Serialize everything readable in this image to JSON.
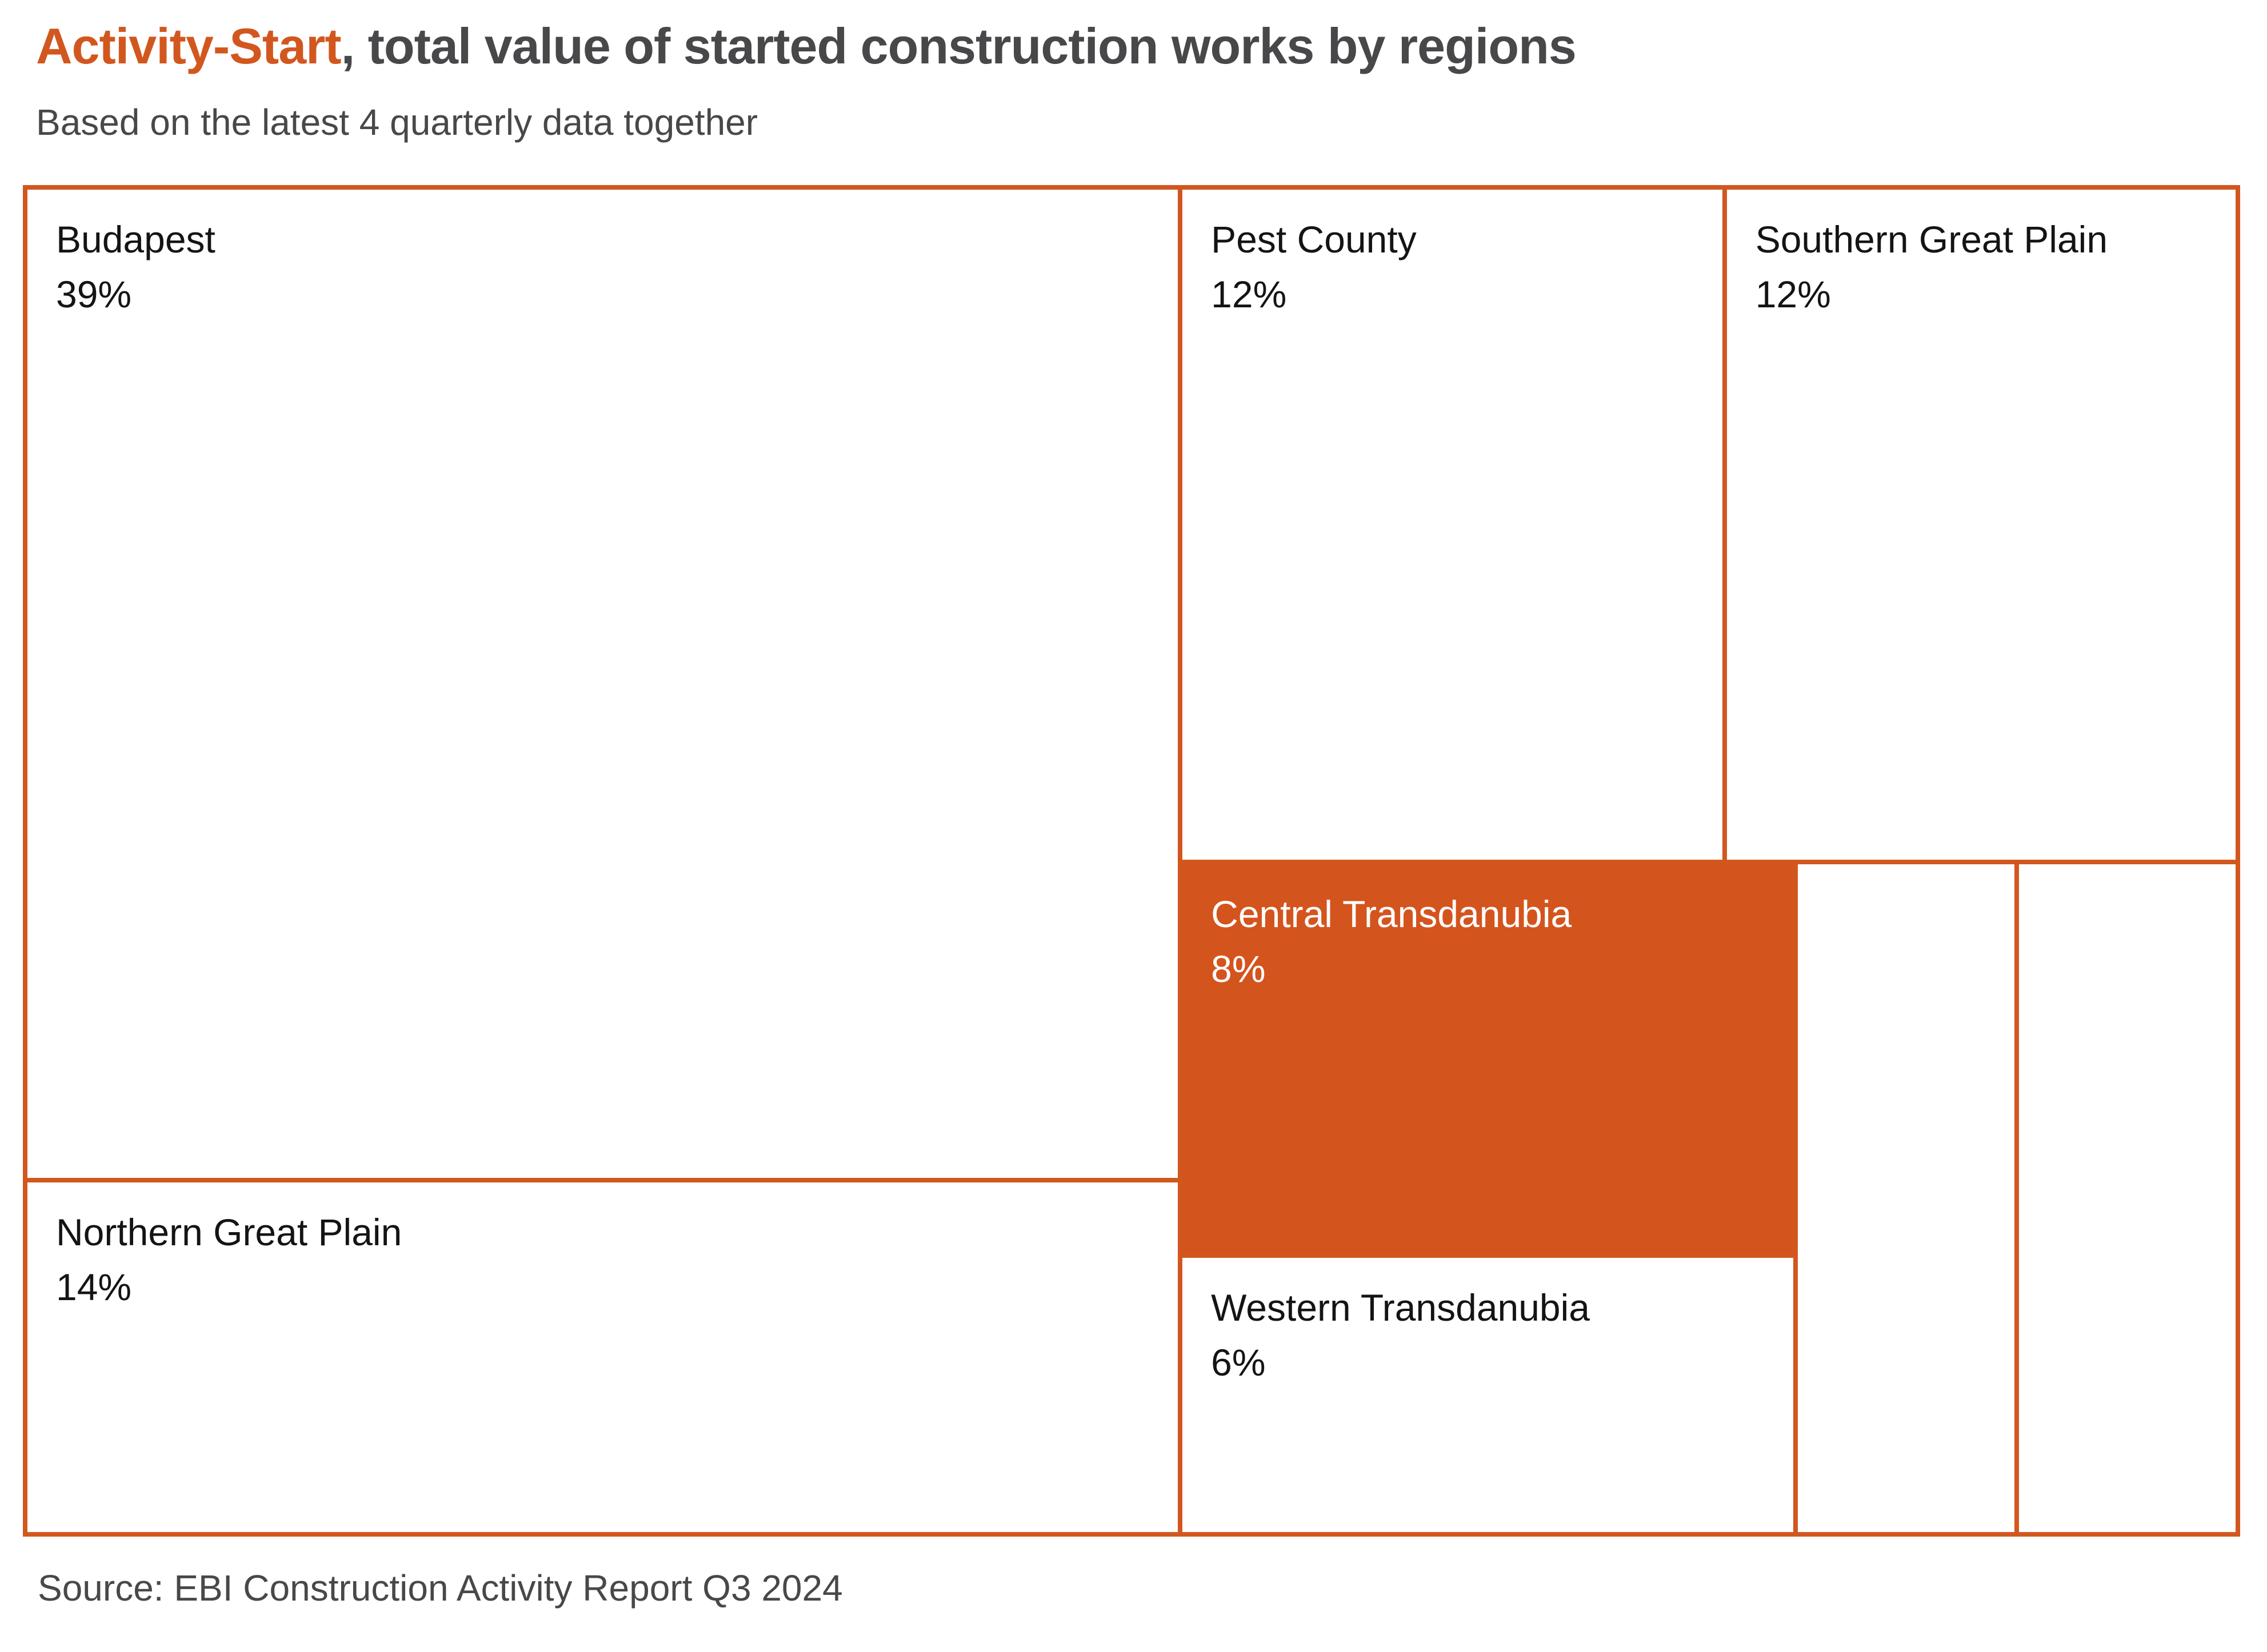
{
  "header": {
    "title_highlight": "Activity-Start",
    "title_rest": ", total value of started construction works by regions",
    "subtitle": "Based on the latest 4 quarterly data together"
  },
  "footer": {
    "source": "Source: EBI Construction Activity Report Q3 2024"
  },
  "colors": {
    "accent_orange": "#D2571F",
    "fill_orange": "#D4541E",
    "border_orange": "#D2571F",
    "heading_gray": "#48484B",
    "label_black": "#141414",
    "label_white": "#FFFFFF",
    "background": "#FFFFFF"
  },
  "chart_data": {
    "type": "treemap",
    "title": "Activity-Start, total value of started construction works by regions",
    "subtitle": "Based on the latest 4 quarterly data together",
    "source": "Source: EBI Construction Activity Report Q3 2024",
    "value_unit": "%",
    "legend": false,
    "tiling": "squarified, largest tile left",
    "items": [
      {
        "name": "Budapest",
        "value": 39,
        "value_label": "39%",
        "label_visible": true,
        "fill": "#FFFFFF",
        "text_color": "#141414"
      },
      {
        "name": "Northern Great Plain",
        "value": 14,
        "value_label": "14%",
        "label_visible": true,
        "fill": "#FFFFFF",
        "text_color": "#141414"
      },
      {
        "name": "Pest County",
        "value": 12,
        "value_label": "12%",
        "label_visible": true,
        "fill": "#FFFFFF",
        "text_color": "#141414"
      },
      {
        "name": "Southern Great Plain",
        "value": 12,
        "value_label": "12%",
        "label_visible": true,
        "fill": "#FFFFFF",
        "text_color": "#141414"
      },
      {
        "name": "Central Transdanubia",
        "value": 8,
        "value_label": "8%",
        "label_visible": true,
        "fill": "#D4541E",
        "text_color": "#FFFFFF",
        "highlighted": true
      },
      {
        "name": "Western Transdanubia",
        "value": 6,
        "value_label": "6%",
        "label_visible": true,
        "fill": "#FFFFFF",
        "text_color": "#141414"
      },
      {
        "name": "",
        "value": null,
        "value_label": "",
        "label_visible": false,
        "fill": "#FFFFFF",
        "note": "unlabeled small tile"
      },
      {
        "name": "",
        "value": null,
        "value_label": "",
        "label_visible": false,
        "fill": "#FFFFFF",
        "note": "unlabeled small tile"
      }
    ]
  }
}
